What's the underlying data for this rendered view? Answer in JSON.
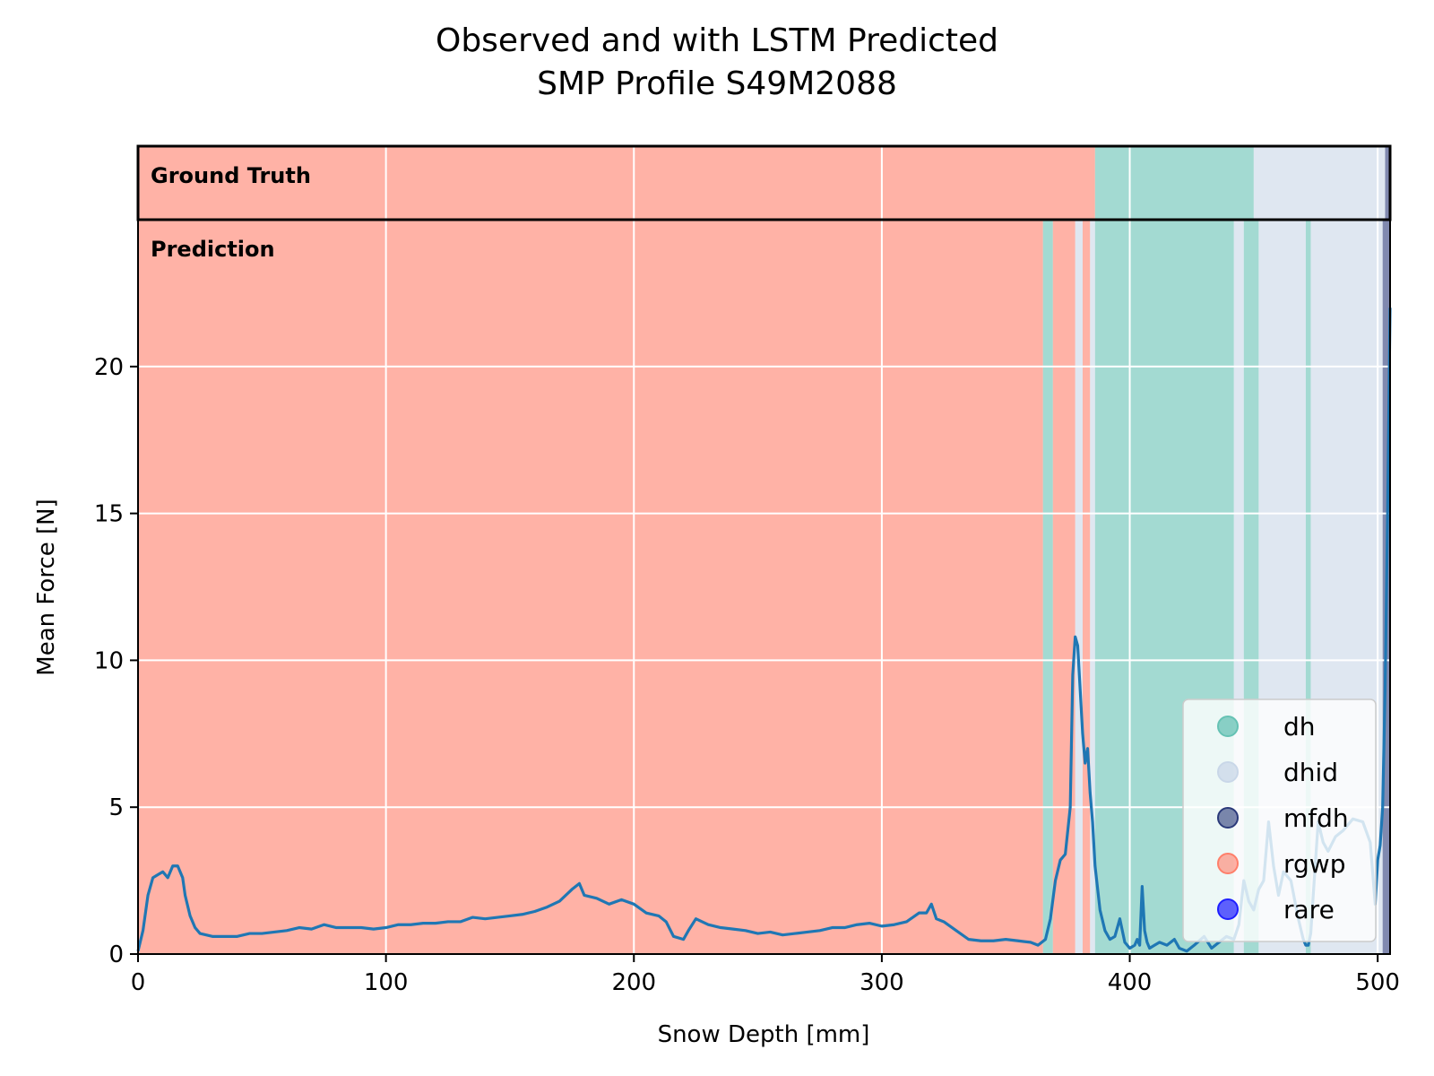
{
  "chart_data": {
    "type": "line",
    "title_line1": "Observed and with LSTM Predicted",
    "title_line2": "SMP Profile S49M2088",
    "xlabel": "Snow Depth [mm]",
    "ylabel": "Mean Force [N]",
    "xlim": [
      0,
      505
    ],
    "ylim": [
      0,
      25
    ],
    "xticks": [
      0,
      100,
      200,
      300,
      400,
      500
    ],
    "yticks": [
      0,
      5,
      10,
      15,
      20
    ],
    "grid": true,
    "legend_position": "lower-right",
    "strip_labels": {
      "ground_truth": "Ground Truth",
      "prediction": "Prediction"
    },
    "classes": [
      {
        "name": "dh",
        "color": "#66c2b4"
      },
      {
        "name": "dhid",
        "color": "#c9d7e8"
      },
      {
        "name": "mfdh",
        "color": "#2b3a7a"
      },
      {
        "name": "rgwp",
        "color": "#ff7f6a"
      },
      {
        "name": "rare",
        "color": "#1f1fff"
      }
    ],
    "ground_truth_segments": [
      {
        "start": 0,
        "end": 386,
        "class": "rgwp"
      },
      {
        "start": 386,
        "end": 450,
        "class": "dh"
      },
      {
        "start": 450,
        "end": 503,
        "class": "dhid"
      },
      {
        "start": 503,
        "end": 505,
        "class": "mfdh"
      }
    ],
    "prediction_segments": [
      {
        "start": 0,
        "end": 365,
        "class": "rgwp"
      },
      {
        "start": 365,
        "end": 369,
        "class": "dh"
      },
      {
        "start": 369,
        "end": 378,
        "class": "rgwp"
      },
      {
        "start": 378,
        "end": 381,
        "class": "dhid"
      },
      {
        "start": 381,
        "end": 384,
        "class": "rgwp"
      },
      {
        "start": 384,
        "end": 386,
        "class": "dhid"
      },
      {
        "start": 386,
        "end": 442,
        "class": "dh"
      },
      {
        "start": 442,
        "end": 446,
        "class": "dhid"
      },
      {
        "start": 446,
        "end": 452,
        "class": "dh"
      },
      {
        "start": 452,
        "end": 471,
        "class": "dhid"
      },
      {
        "start": 471,
        "end": 473,
        "class": "dh"
      },
      {
        "start": 473,
        "end": 502,
        "class": "dhid"
      },
      {
        "start": 502,
        "end": 505,
        "class": "mfdh"
      }
    ],
    "series": [
      {
        "color": "#1f77b4",
        "x": [
          0,
          2,
          4,
          6,
          8,
          10,
          12,
          14,
          16,
          18,
          19,
          21,
          23,
          25,
          30,
          35,
          40,
          45,
          50,
          55,
          60,
          65,
          70,
          75,
          80,
          85,
          90,
          95,
          100,
          105,
          110,
          115,
          120,
          125,
          130,
          135,
          140,
          145,
          150,
          155,
          160,
          165,
          170,
          175,
          178,
          180,
          185,
          190,
          195,
          200,
          205,
          210,
          213,
          216,
          220,
          222,
          225,
          230,
          235,
          240,
          245,
          250,
          255,
          260,
          265,
          270,
          275,
          280,
          285,
          290,
          295,
          300,
          305,
          310,
          315,
          318,
          320,
          322,
          325,
          330,
          335,
          340,
          345,
          350,
          355,
          360,
          363,
          366,
          368,
          370,
          372,
          374,
          376,
          377,
          378,
          379,
          380,
          381,
          382,
          383,
          384,
          385,
          386,
          388,
          390,
          392,
          394,
          396,
          398,
          400,
          402,
          403,
          404,
          405,
          406,
          407,
          408,
          410,
          412,
          415,
          418,
          420,
          423,
          426,
          430,
          433,
          436,
          439,
          442,
          444,
          446,
          448,
          450,
          452,
          454,
          456,
          458,
          460,
          462,
          465,
          468,
          470,
          471,
          472,
          473,
          474,
          476,
          478,
          480,
          483,
          486,
          490,
          494,
          497,
          499,
          500,
          501,
          502,
          503,
          504,
          505
        ],
        "y": [
          0.1,
          0.8,
          2.0,
          2.6,
          2.7,
          2.8,
          2.6,
          3.0,
          3.0,
          2.6,
          2.0,
          1.3,
          0.9,
          0.7,
          0.6,
          0.6,
          0.6,
          0.7,
          0.7,
          0.75,
          0.8,
          0.9,
          0.85,
          1.0,
          0.9,
          0.9,
          0.9,
          0.85,
          0.9,
          1.0,
          1.0,
          1.05,
          1.05,
          1.1,
          1.1,
          1.25,
          1.2,
          1.25,
          1.3,
          1.35,
          1.45,
          1.6,
          1.8,
          2.2,
          2.4,
          2.0,
          1.9,
          1.7,
          1.85,
          1.7,
          1.4,
          1.3,
          1.1,
          0.6,
          0.5,
          0.8,
          1.2,
          1.0,
          0.9,
          0.85,
          0.8,
          0.7,
          0.75,
          0.65,
          0.7,
          0.75,
          0.8,
          0.9,
          0.9,
          1.0,
          1.05,
          0.95,
          1.0,
          1.1,
          1.4,
          1.4,
          1.7,
          1.2,
          1.1,
          0.8,
          0.5,
          0.45,
          0.45,
          0.5,
          0.45,
          0.4,
          0.3,
          0.5,
          1.2,
          2.5,
          3.2,
          3.4,
          5.0,
          9.5,
          10.8,
          10.5,
          9.0,
          7.5,
          6.5,
          7.0,
          5.5,
          4.5,
          3.0,
          1.5,
          0.8,
          0.5,
          0.6,
          1.2,
          0.4,
          0.2,
          0.3,
          0.5,
          0.3,
          2.3,
          0.8,
          0.4,
          0.2,
          0.3,
          0.4,
          0.3,
          0.5,
          0.2,
          0.1,
          0.3,
          0.6,
          0.2,
          0.4,
          0.6,
          0.5,
          1.0,
          2.5,
          1.8,
          1.5,
          2.2,
          2.5,
          4.5,
          3.0,
          2.0,
          2.8,
          2.5,
          1.2,
          0.5,
          0.3,
          0.3,
          0.7,
          2.0,
          4.5,
          3.8,
          3.5,
          4.0,
          4.2,
          4.6,
          4.5,
          3.8,
          1.7,
          3.2,
          3.7,
          5.0,
          9.0,
          15.0,
          22.0
        ]
      }
    ]
  }
}
